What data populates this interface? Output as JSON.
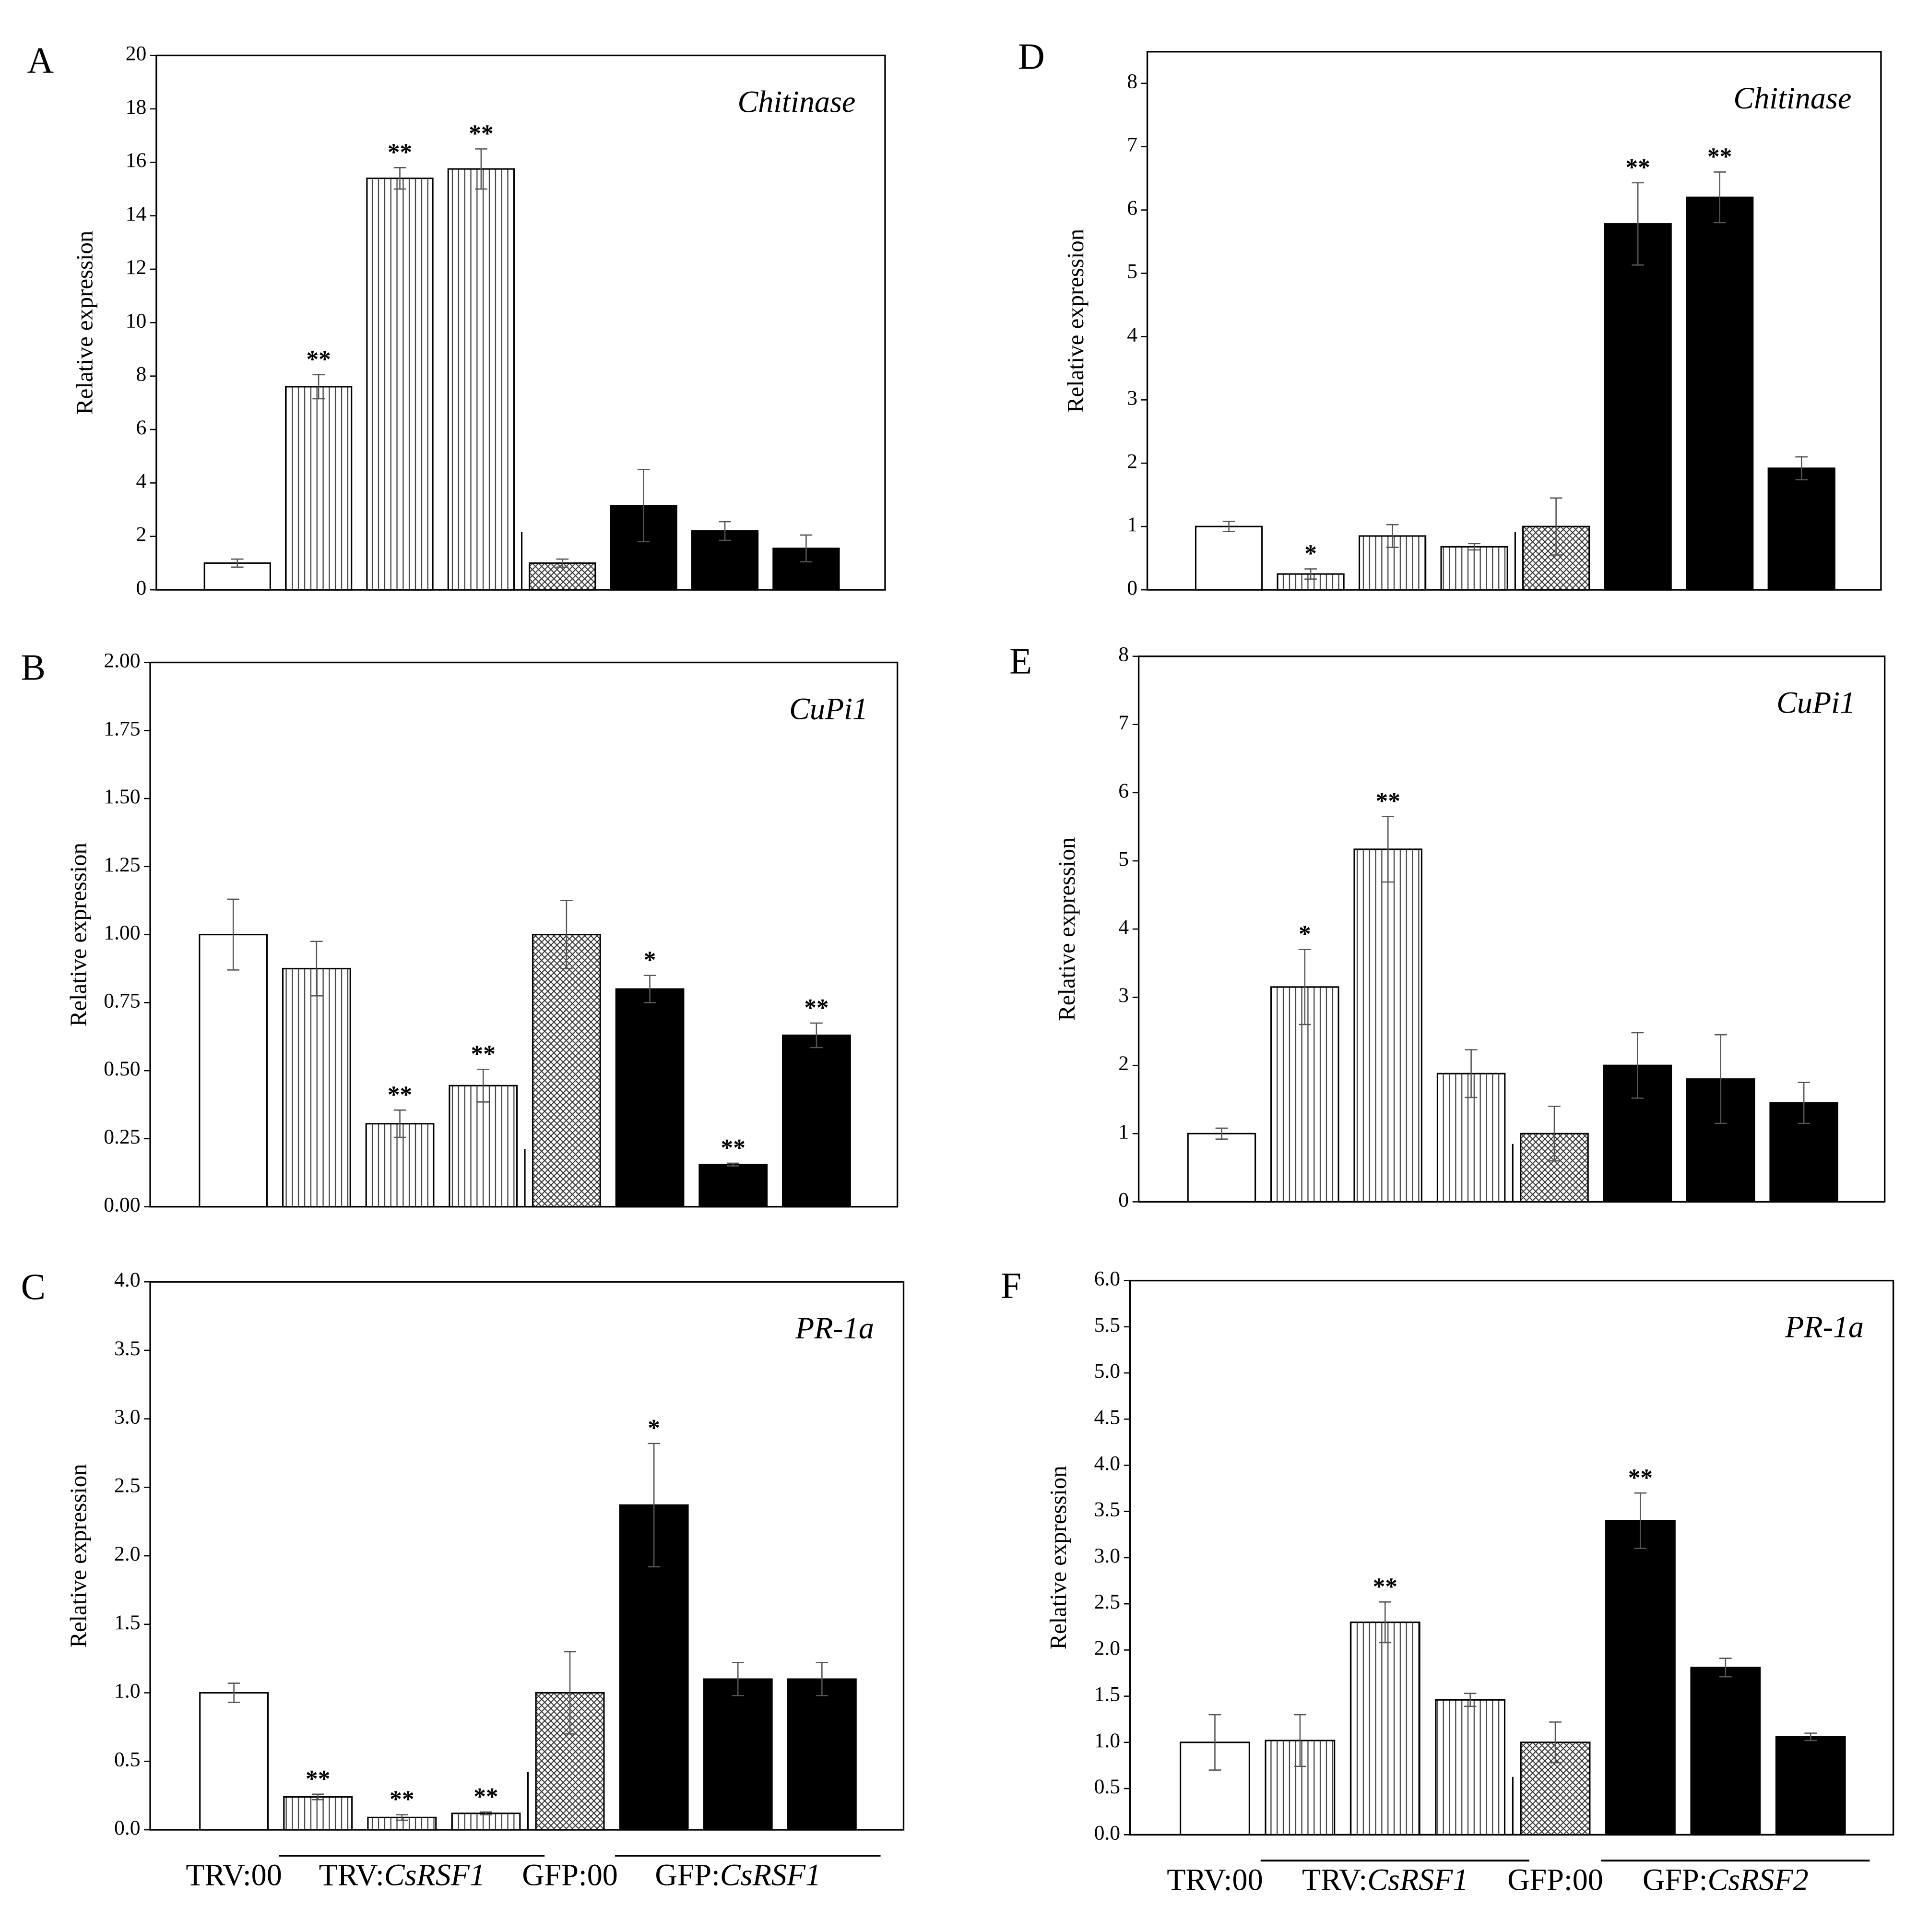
{
  "chart_data": [
    {
      "type": "bar",
      "panel": "A",
      "title": "Chitinase",
      "ylabel": "Relative expression",
      "ylim": [
        0,
        20
      ],
      "yticks": [
        0,
        2,
        4,
        6,
        8,
        10,
        12,
        14,
        16,
        18,
        20
      ],
      "values": [
        1.0,
        7.6,
        15.4,
        15.75,
        1.0,
        3.15,
        2.2,
        1.55
      ],
      "errors": [
        0.15,
        0.45,
        0.4,
        0.75,
        0.15,
        1.35,
        0.35,
        0.5
      ],
      "labels": [
        null,
        "**",
        "**",
        "**",
        null,
        null,
        null,
        null
      ],
      "fills": [
        "white",
        "vertical",
        "vertical",
        "vertical",
        "crosshatch",
        "black",
        "black",
        "black"
      ]
    },
    {
      "type": "bar",
      "panel": "B",
      "title": "CuPi1",
      "ylabel": "Relative expression",
      "ylim": [
        0,
        2
      ],
      "yticks": [
        {
          "value": 0,
          "label": "0.00"
        },
        {
          "value": 0.25,
          "label": "0.25"
        },
        {
          "value": 0.5,
          "label": "0.50"
        },
        {
          "value": 0.75,
          "label": "0.75"
        },
        {
          "value": 1,
          "label": "1.00"
        },
        {
          "value": 1.25,
          "label": "1.25"
        },
        {
          "value": 1.5,
          "label": "1.50"
        },
        {
          "value": 1.75,
          "label": "1.75"
        },
        {
          "value": 2,
          "label": "2.00"
        }
      ],
      "values": [
        1.0,
        0.875,
        0.305,
        0.445,
        1.0,
        0.8,
        0.155,
        0.63
      ],
      "errors": [
        0.13,
        0.1,
        0.05,
        0.06,
        0.125,
        0.05,
        0.005,
        0.045
      ],
      "labels": [
        null,
        null,
        "**",
        "**",
        null,
        "*",
        "**",
        "**"
      ],
      "fills": [
        "white",
        "vertical",
        "vertical",
        "vertical",
        "crosshatch",
        "black",
        "black",
        "black"
      ]
    },
    {
      "type": "bar",
      "panel": "C",
      "title": "PR-1a",
      "ylabel": "Relative expression",
      "ylim": [
        0,
        4
      ],
      "yticks": [
        {
          "value": 0,
          "label": "0.0"
        },
        0.5,
        {
          "value": 1,
          "label": "1.0"
        },
        1.5,
        {
          "value": 2,
          "label": "2.0"
        },
        2.5,
        {
          "value": 3,
          "label": "3.0"
        },
        3.5,
        {
          "value": 4,
          "label": "4.0"
        }
      ],
      "values": [
        1.0,
        0.24,
        0.09,
        0.12,
        1.0,
        2.37,
        1.1,
        1.1
      ],
      "errors": [
        0.07,
        0.02,
        0.02,
        0.01,
        0.3,
        0.45,
        0.12,
        0.12
      ],
      "labels": [
        null,
        "**",
        "**",
        "**",
        null,
        "*",
        null,
        null
      ],
      "fills": [
        "white",
        "vertical",
        "vertical",
        "vertical",
        "crosshatch",
        "black",
        "black",
        "black"
      ],
      "groups": [
        {
          "prefix": "TRV:00"
        },
        {
          "prefix": "TRV:",
          "gene": "CsRSF1"
        },
        {
          "prefix": "GFP:00"
        },
        {
          "prefix": "GFP:",
          "gene": "CsRSF1"
        }
      ]
    },
    {
      "type": "bar",
      "panel": "D",
      "title": "Chitinase",
      "ylabel": "Relative expression",
      "ylim": [
        0,
        8.5
      ],
      "yticks": [
        0,
        1,
        2,
        3,
        4,
        5,
        6,
        7,
        8
      ],
      "values": [
        1.0,
        0.25,
        0.85,
        0.68,
        1.0,
        5.78,
        6.2,
        1.92
      ],
      "errors": [
        0.08,
        0.08,
        0.18,
        0.05,
        0.45,
        0.65,
        0.4,
        0.18
      ],
      "labels": [
        null,
        "*",
        null,
        null,
        null,
        "**",
        "**",
        null
      ],
      "fills": [
        "white",
        "vertical",
        "vertical",
        "vertical",
        "crosshatch",
        "black",
        "black",
        "black"
      ]
    },
    {
      "type": "bar",
      "panel": "E",
      "title": "CuPi1",
      "ylabel": "Relative expression",
      "ylim": [
        0,
        8
      ],
      "yticks": [
        0,
        1,
        2,
        3,
        4,
        5,
        6,
        7,
        8
      ],
      "values": [
        1.0,
        3.15,
        5.17,
        1.88,
        1.0,
        2.0,
        1.8,
        1.45
      ],
      "errors": [
        0.08,
        0.55,
        0.48,
        0.35,
        0.4,
        0.48,
        0.65,
        0.3
      ],
      "labels": [
        null,
        "*",
        "**",
        null,
        null,
        null,
        null,
        null
      ],
      "fills": [
        "white",
        "vertical",
        "vertical",
        "vertical",
        "crosshatch",
        "black",
        "black",
        "black"
      ]
    },
    {
      "type": "bar",
      "panel": "F",
      "title": "PR-1a",
      "ylabel": "Relative expression",
      "ylim": [
        0,
        6
      ],
      "yticks": [
        {
          "value": 0,
          "label": "0.0"
        },
        0.5,
        {
          "value": 1,
          "label": "1.0"
        },
        1.5,
        {
          "value": 2,
          "label": "2.0"
        },
        2.5,
        {
          "value": 3,
          "label": "3.0"
        },
        3.5,
        {
          "value": 4,
          "label": "4.0"
        },
        4.5,
        {
          "value": 5,
          "label": "5.0"
        },
        5.5,
        {
          "value": 6,
          "label": "6.0"
        }
      ],
      "values": [
        1.0,
        1.02,
        2.3,
        1.46,
        1.0,
        3.4,
        1.81,
        1.06
      ],
      "errors": [
        0.3,
        0.28,
        0.22,
        0.07,
        0.22,
        0.3,
        0.1,
        0.04
      ],
      "labels": [
        null,
        null,
        "**",
        null,
        null,
        "**",
        null,
        null
      ],
      "fills": [
        "white",
        "vertical",
        "vertical",
        "vertical",
        "crosshatch",
        "black",
        "black",
        "black"
      ],
      "groups": [
        {
          "prefix": "TRV:00"
        },
        {
          "prefix": "TRV:",
          "gene": "CsRSF1"
        },
        {
          "prefix": "GFP:00"
        },
        {
          "prefix": "GFP:",
          "gene": "CsRSF2"
        }
      ]
    }
  ]
}
